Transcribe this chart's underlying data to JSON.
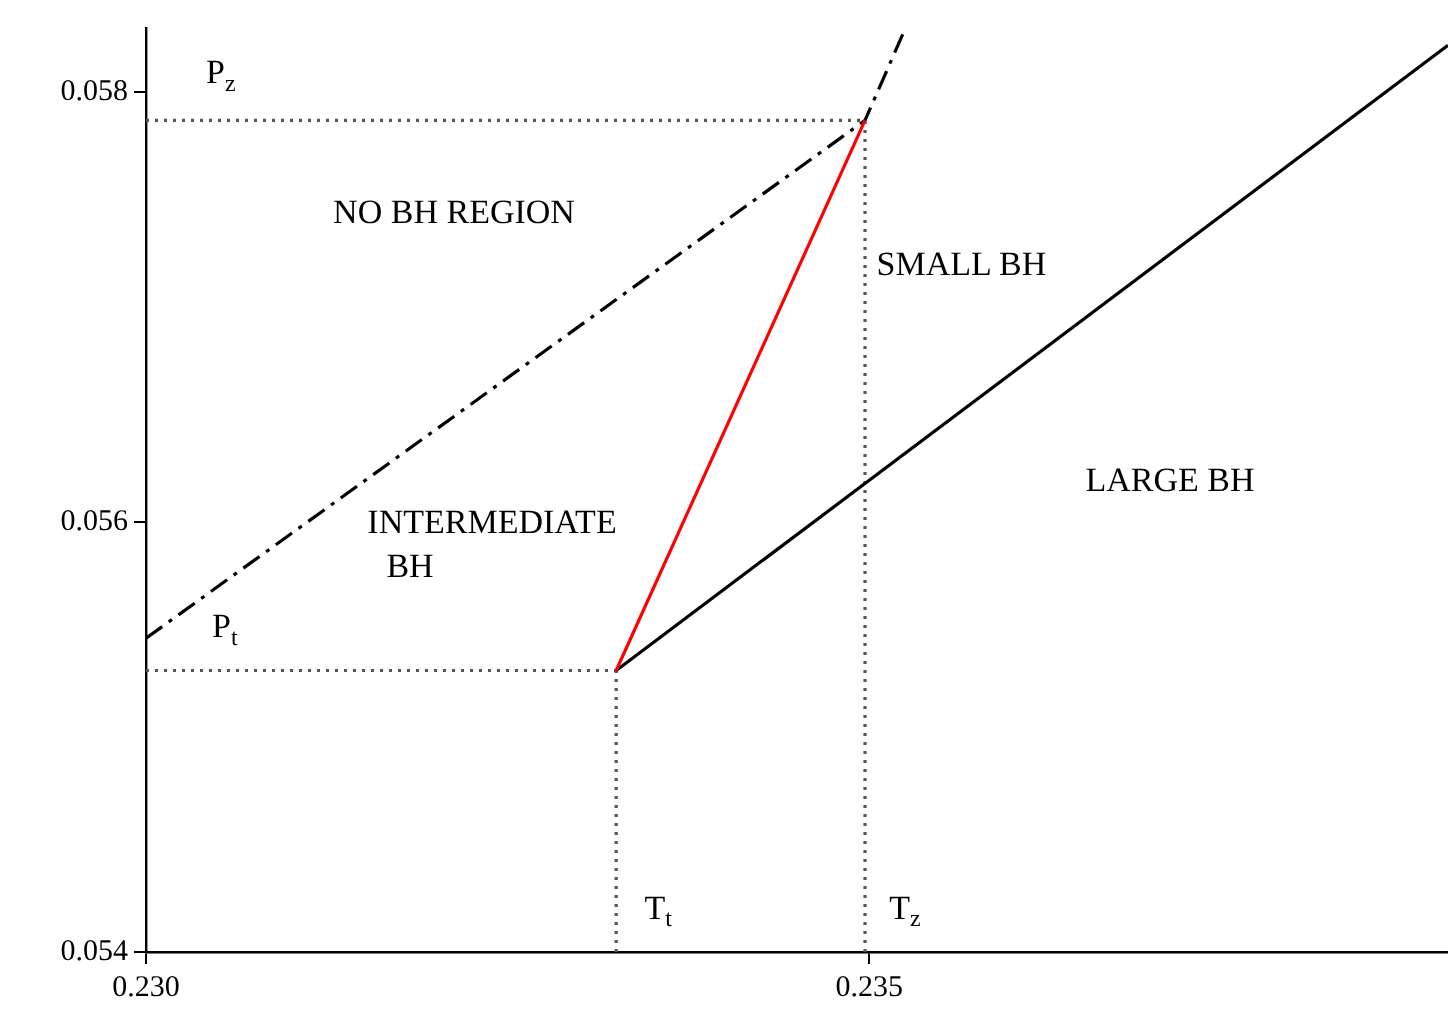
{
  "chart_data": {
    "type": "line",
    "xlim": [
      0.23,
      0.239
    ],
    "ylim": [
      0.054,
      0.0583
    ],
    "xticks": [
      {
        "value": 0.23,
        "label": "0.230"
      },
      {
        "value": 0.235,
        "label": "0.235"
      }
    ],
    "yticks": [
      {
        "value": 0.054,
        "label": "0.054"
      },
      {
        "value": 0.056,
        "label": "0.056"
      },
      {
        "value": 0.058,
        "label": "0.058"
      }
    ],
    "grid": false,
    "legend": false,
    "marker": "none",
    "series": [
      {
        "type": "line",
        "color": "#ff0000",
        "line_style": "solid",
        "x": [
          0.23325,
          0.23497
        ],
        "values": [
          0.05531,
          0.05787
        ]
      },
      {
        "type": "line",
        "color": "#000000",
        "line_style": "solid",
        "x": [
          0.23325,
          0.239
        ],
        "values": [
          0.05531,
          0.05822
        ]
      },
      {
        "type": "line",
        "color": "#000000",
        "line_style": "dashdot",
        "x": [
          0.23,
          0.23497,
          0.23525
        ],
        "values": [
          0.05546,
          0.05787,
          0.0583
        ]
      },
      {
        "type": "line",
        "color": "#555555",
        "line_style": "dotted",
        "x": [
          0.23,
          0.23497
        ],
        "values": [
          0.05787,
          0.05787
        ]
      },
      {
        "type": "line",
        "color": "#555555",
        "line_style": "dotted",
        "x": [
          0.23,
          0.23325
        ],
        "values": [
          0.05531,
          0.05531
        ]
      },
      {
        "type": "line",
        "color": "#555555",
        "line_style": "dotted",
        "x": [
          0.23325,
          0.23325
        ],
        "values": [
          0.054,
          0.05531
        ]
      },
      {
        "type": "line",
        "color": "#555555",
        "line_style": "dotted",
        "x": [
          0.23497,
          0.23497
        ],
        "values": [
          0.054,
          0.05787
        ]
      }
    ],
    "annotations": [
      {
        "text": "P$_{z}$",
        "x": 0.23042,
        "y": 0.05787
      },
      {
        "text": "P$_{t}$",
        "x": 0.23042,
        "y": 0.05531
      },
      {
        "text": "T$_{t}$",
        "x": 0.23325,
        "y": 0.054
      },
      {
        "text": "T$_{z}$",
        "x": 0.23497,
        "y": 0.054
      },
      "NO BH REGION",
      "SMALL BH",
      "LARGE BH",
      "INTERMEDIATE",
      "BH"
    ]
  }
}
